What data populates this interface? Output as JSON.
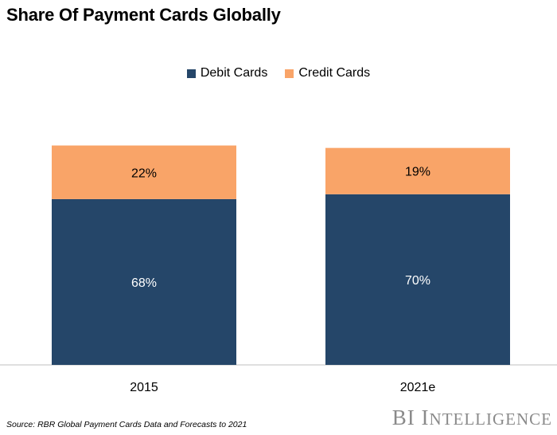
{
  "title": "Share Of Payment Cards Globally",
  "source": "Source: RBR Global Payment Cards Data and Forecasts to 2021",
  "brand": {
    "first": "BI",
    "second_initial": "I",
    "second_rest": "NTELLIGENCE"
  },
  "colors": {
    "debit": "#254669",
    "credit": "#F9A468",
    "axis": "#bfbfbf"
  },
  "chart_data": {
    "type": "bar",
    "stacked": true,
    "categories": [
      "2015",
      "2021e"
    ],
    "series": [
      {
        "name": "Debit Cards",
        "values": [
          68,
          70
        ],
        "labels": [
          "68%",
          "70%"
        ]
      },
      {
        "name": "Credit Cards",
        "values": [
          22,
          19
        ],
        "labels": [
          "22%",
          "19%"
        ]
      }
    ],
    "title": "Share Of Payment Cards Globally",
    "xlabel": "",
    "ylabel": "",
    "ylim": [
      0,
      90
    ],
    "grid": false,
    "legend": "top"
  }
}
